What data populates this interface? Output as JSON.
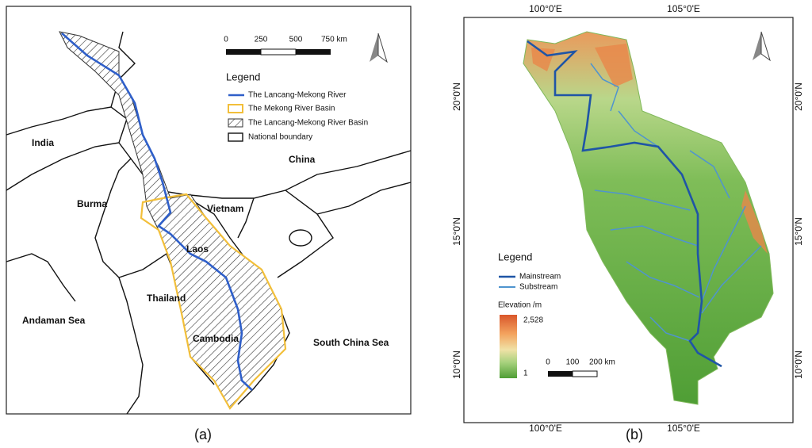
{
  "panel_a": {
    "scale_bar": [
      "0",
      "250",
      "500",
      "750 km"
    ],
    "legend": {
      "title": "Legend",
      "items": [
        "The Lancang-Mekong River",
        "The Mekong River Basin",
        "The Lancang-Mekong River Basin",
        "National boundary"
      ]
    },
    "labels": [
      "India",
      "China",
      "Burma",
      "Vietnam",
      "Laos",
      "Thailand",
      "Cambodia",
      "Andaman Sea",
      "South China Sea"
    ],
    "caption": "(a)"
  },
  "panel_b": {
    "top_ticks": [
      "100°0'E",
      "105°0'E"
    ],
    "bottom_ticks": [
      "100°0'E",
      "105°0'E"
    ],
    "left_ticks": [
      "20°0'N",
      "15°0'N",
      "10°0'N"
    ],
    "right_ticks": [
      "20°0'N",
      "15°0'N",
      "10°0'N"
    ],
    "legend": {
      "title": "Legend",
      "items": [
        "Mainstream",
        "Substream"
      ],
      "elevation_title": "Elevation /m",
      "elevation_max": "2,528",
      "elevation_min": "1"
    },
    "scale_bar": [
      "0",
      "100",
      "200 km"
    ],
    "caption": "(b)"
  }
}
